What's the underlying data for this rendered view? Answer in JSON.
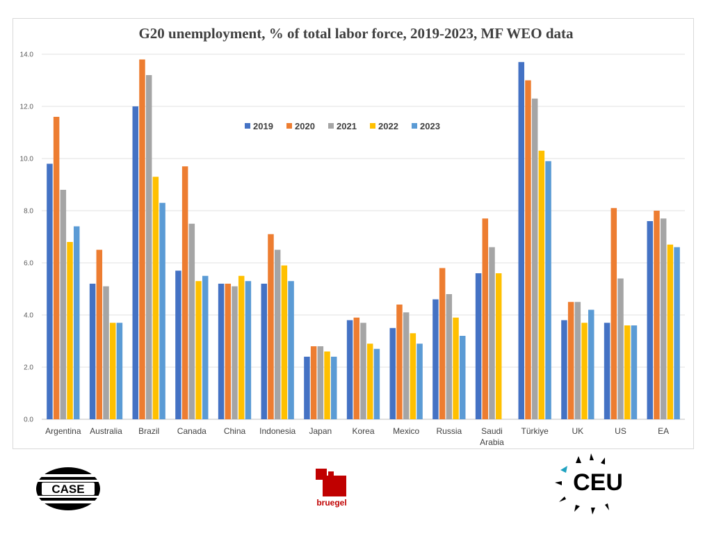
{
  "chart_data": {
    "type": "bar",
    "title": "G20 unemployment, % of total labor force, 2019-2023, MF WEO data",
    "xlabel": "",
    "ylabel": "",
    "ylim": [
      0,
      14
    ],
    "yticks": [
      "0.0",
      "2.0",
      "4.0",
      "6.0",
      "8.0",
      "10.0",
      "12.0",
      "14.0"
    ],
    "grid": true,
    "legend_position": "top-center",
    "categories": [
      [
        "Argentina"
      ],
      [
        "Australia"
      ],
      [
        "Brazil"
      ],
      [
        "Canada"
      ],
      [
        "China"
      ],
      [
        "Indonesia"
      ],
      [
        "Japan"
      ],
      [
        "Korea"
      ],
      [
        "Mexico"
      ],
      [
        "Russia"
      ],
      [
        "Saudi",
        "Arabia"
      ],
      [
        "Türkiye"
      ],
      [
        "UK"
      ],
      [
        "US"
      ],
      [
        "EA"
      ]
    ],
    "series": [
      {
        "name": "2019",
        "color": "#4472C4",
        "values": [
          9.8,
          5.2,
          12.0,
          5.7,
          5.2,
          5.2,
          2.4,
          3.8,
          3.5,
          4.6,
          5.6,
          13.7,
          3.8,
          3.7,
          7.6
        ]
      },
      {
        "name": "2020",
        "color": "#ED7D31",
        "values": [
          11.6,
          6.5,
          13.8,
          9.7,
          5.2,
          7.1,
          2.8,
          3.9,
          4.4,
          5.8,
          7.7,
          13.0,
          4.5,
          8.1,
          8.0
        ]
      },
      {
        "name": "2021",
        "color": "#A5A5A5",
        "values": [
          8.8,
          5.1,
          13.2,
          7.5,
          5.1,
          6.5,
          2.8,
          3.7,
          4.1,
          4.8,
          6.6,
          12.3,
          4.5,
          5.4,
          7.7
        ]
      },
      {
        "name": "2022",
        "color": "#FFC000",
        "values": [
          6.8,
          3.7,
          9.3,
          5.3,
          5.5,
          5.9,
          2.6,
          2.9,
          3.3,
          3.9,
          5.6,
          10.3,
          3.7,
          3.6,
          6.7
        ]
      },
      {
        "name": "2023",
        "color": "#5B9BD5",
        "values": [
          7.4,
          3.7,
          8.3,
          5.5,
          5.3,
          5.3,
          2.4,
          2.7,
          2.9,
          3.2,
          null,
          9.9,
          4.2,
          3.6,
          6.6
        ]
      }
    ]
  },
  "logos": {
    "case": "CASE",
    "bruegel": "bruegel",
    "ceu": "CEU"
  },
  "colors": {
    "case_logo": "#000000",
    "bruegel_red": "#C00000",
    "ceu_accent": "#1FA2C0"
  }
}
